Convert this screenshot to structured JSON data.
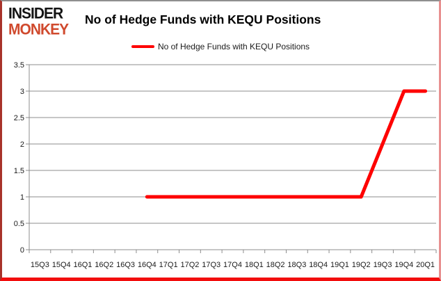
{
  "logo": {
    "line1": "INSIDER",
    "line2": "MONKEY"
  },
  "title": "No of Hedge Funds with KEQU Positions",
  "legend": {
    "label": "No of Hedge Funds with KEQU Positions"
  },
  "colors": {
    "line": "#fe0000",
    "grid": "#8c8c8c",
    "axis_text": "#1a1a1a",
    "logo_black": "#141414",
    "logo_red": "#d04a2e"
  },
  "chart_data": {
    "type": "line",
    "title": "No of Hedge Funds with KEQU Positions",
    "categories": [
      "15Q3",
      "15Q4",
      "16Q1",
      "16Q2",
      "16Q3",
      "16Q4",
      "17Q1",
      "17Q2",
      "17Q3",
      "17Q4",
      "18Q1",
      "18Q2",
      "18Q3",
      "18Q4",
      "19Q1",
      "19Q2",
      "19Q3",
      "19Q4",
      "20Q1"
    ],
    "series": [
      {
        "name": "No of Hedge Funds with KEQU Positions",
        "color": "#fe0000",
        "values": [
          null,
          null,
          null,
          null,
          null,
          1,
          1,
          1,
          1,
          1,
          1,
          1,
          1,
          1,
          1,
          1,
          2,
          3,
          3
        ]
      }
    ],
    "xlabel": "",
    "ylabel": "",
    "ylim": [
      0,
      3.5
    ],
    "yticks": [
      0,
      0.5,
      1,
      1.5,
      2,
      2.5,
      3,
      3.5
    ],
    "grid": true,
    "legend_position": "top-center"
  }
}
